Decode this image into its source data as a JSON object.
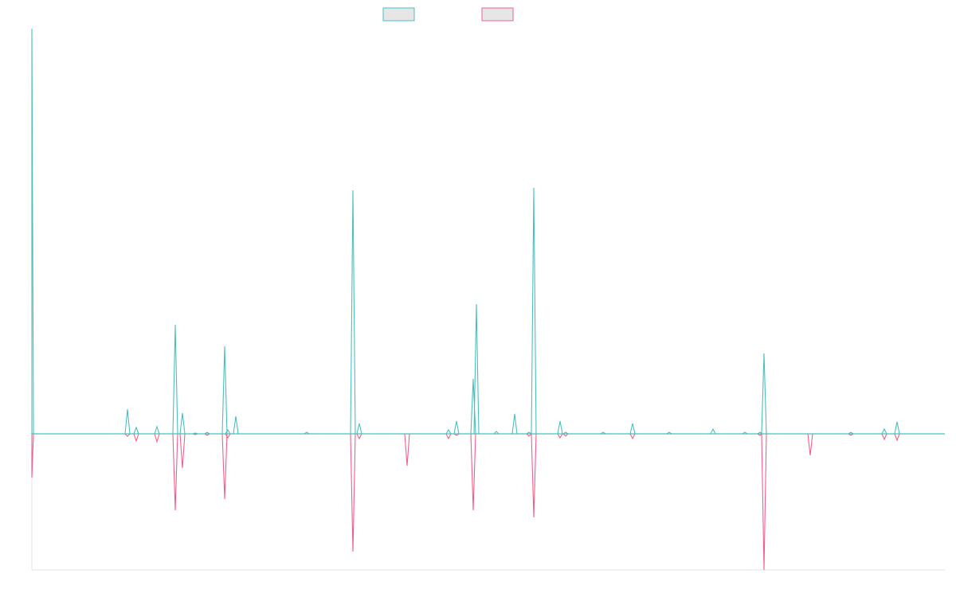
{
  "chart_data": {
    "type": "line",
    "title": "",
    "xlabel": "",
    "ylabel": "",
    "legend": {
      "position": "top-center",
      "show_labels": false
    },
    "grid": false,
    "x_range": [
      0,
      1146
    ],
    "ylim": [
      -171,
      509
    ],
    "baseline": 0,
    "colors": {
      "series_a": "#4bbfbf",
      "series_b": "#f0608a",
      "legend_fill": "#e6e6e6",
      "axis": "#e3e3e3"
    },
    "series": [
      {
        "color": "#4bbfbf",
        "spikes": [
          [
            0,
            509
          ],
          [
            120,
            31
          ],
          [
            131,
            8
          ],
          [
            157,
            9
          ],
          [
            180,
            137
          ],
          [
            189,
            26
          ],
          [
            205,
            1
          ],
          [
            220,
            2
          ],
          [
            242,
            110
          ],
          [
            246,
            5
          ],
          [
            256,
            22
          ],
          [
            345,
            2
          ],
          [
            403,
            306
          ],
          [
            411,
            13
          ],
          [
            523,
            5
          ],
          [
            533,
            16
          ],
          [
            554,
            69
          ],
          [
            558,
            163
          ],
          [
            583,
            3
          ],
          [
            606,
            25
          ],
          [
            624,
            2
          ],
          [
            630,
            309
          ],
          [
            663,
            16
          ],
          [
            670,
            2
          ],
          [
            717,
            2
          ],
          [
            754,
            13
          ],
          [
            800,
            2
          ],
          [
            855,
            6
          ],
          [
            895,
            2
          ],
          [
            914,
            2
          ],
          [
            919,
            101
          ],
          [
            1028,
            2
          ],
          [
            1070,
            6
          ],
          [
            1086,
            15
          ]
        ]
      },
      {
        "color": "#f0608a",
        "spikes": [
          [
            0,
            -55
          ],
          [
            120,
            -3
          ],
          [
            131,
            -9
          ],
          [
            157,
            -10
          ],
          [
            180,
            -96
          ],
          [
            189,
            -43
          ],
          [
            205,
            -1
          ],
          [
            220,
            -2
          ],
          [
            242,
            -82
          ],
          [
            246,
            -5
          ],
          [
            403,
            -148
          ],
          [
            411,
            -6
          ],
          [
            471,
            -40
          ],
          [
            523,
            -6
          ],
          [
            533,
            -2
          ],
          [
            554,
            -96
          ],
          [
            624,
            -3
          ],
          [
            630,
            -105
          ],
          [
            663,
            -5
          ],
          [
            670,
            -3
          ],
          [
            754,
            -6
          ],
          [
            914,
            -2
          ],
          [
            919,
            -171
          ],
          [
            977,
            -27
          ],
          [
            1028,
            -2
          ],
          [
            1070,
            -7
          ],
          [
            1086,
            -8
          ]
        ]
      }
    ]
  }
}
